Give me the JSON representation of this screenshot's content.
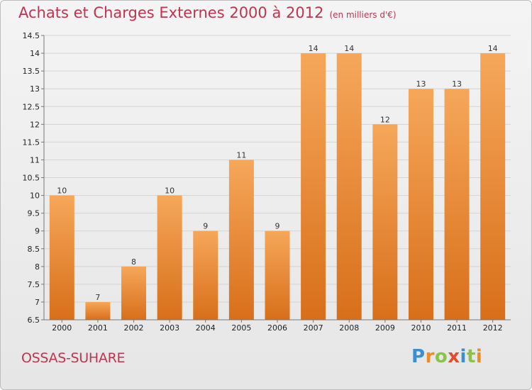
{
  "header": {
    "title": "Achats et Charges Externes 2000 à 2012",
    "unit": "(en milliers d'€)"
  },
  "footer": {
    "commune": "OSSAS-SUHARE",
    "brand": "Proxiti",
    "brand_letters": [
      {
        "ch": "P",
        "color": "#3a8fd0"
      },
      {
        "ch": "r",
        "color": "#f08a24"
      },
      {
        "ch": "o",
        "color": "#8bc34a"
      },
      {
        "ch": "x",
        "color": "#e64a2e"
      },
      {
        "ch": "i",
        "color": "#3a8fd0"
      },
      {
        "ch": "t",
        "color": "#8bc34a"
      },
      {
        "ch": "i",
        "color": "#f08a24"
      }
    ]
  },
  "colors": {
    "bar_top": "#f6a75a",
    "bar_bottom": "#d86f1a",
    "title": "#c0344f"
  },
  "chart_data": {
    "type": "bar",
    "title": "Achats et Charges Externes 2000 à 2012",
    "subtitle": "(en milliers d'€)",
    "categories": [
      "2000",
      "2001",
      "2002",
      "2003",
      "2004",
      "2005",
      "2006",
      "2007",
      "2008",
      "2009",
      "2010",
      "2011",
      "2012"
    ],
    "values": [
      10,
      7,
      8,
      10,
      9,
      11,
      9,
      14,
      14,
      12,
      13,
      13,
      14
    ],
    "value_labels": [
      "10",
      "7",
      "8",
      "10",
      "9",
      "11",
      "9",
      "14",
      "14",
      "12",
      "13",
      "13",
      "14"
    ],
    "ylim": [
      6.5,
      14.5
    ],
    "yticks": [
      6.5,
      7,
      7.5,
      8,
      8.5,
      9,
      9.5,
      10,
      10.5,
      11,
      11.5,
      12,
      12.5,
      13,
      13.5,
      14,
      14.5
    ],
    "ytick_labels": [
      "6.5",
      "7",
      "7.5",
      "8",
      "8.5",
      "9",
      "9.5",
      "10",
      "10.5",
      "11",
      "11.5",
      "12",
      "12.5",
      "13",
      "13.5",
      "14",
      "14.5"
    ],
    "grid": true,
    "xlabel": "",
    "ylabel": ""
  }
}
